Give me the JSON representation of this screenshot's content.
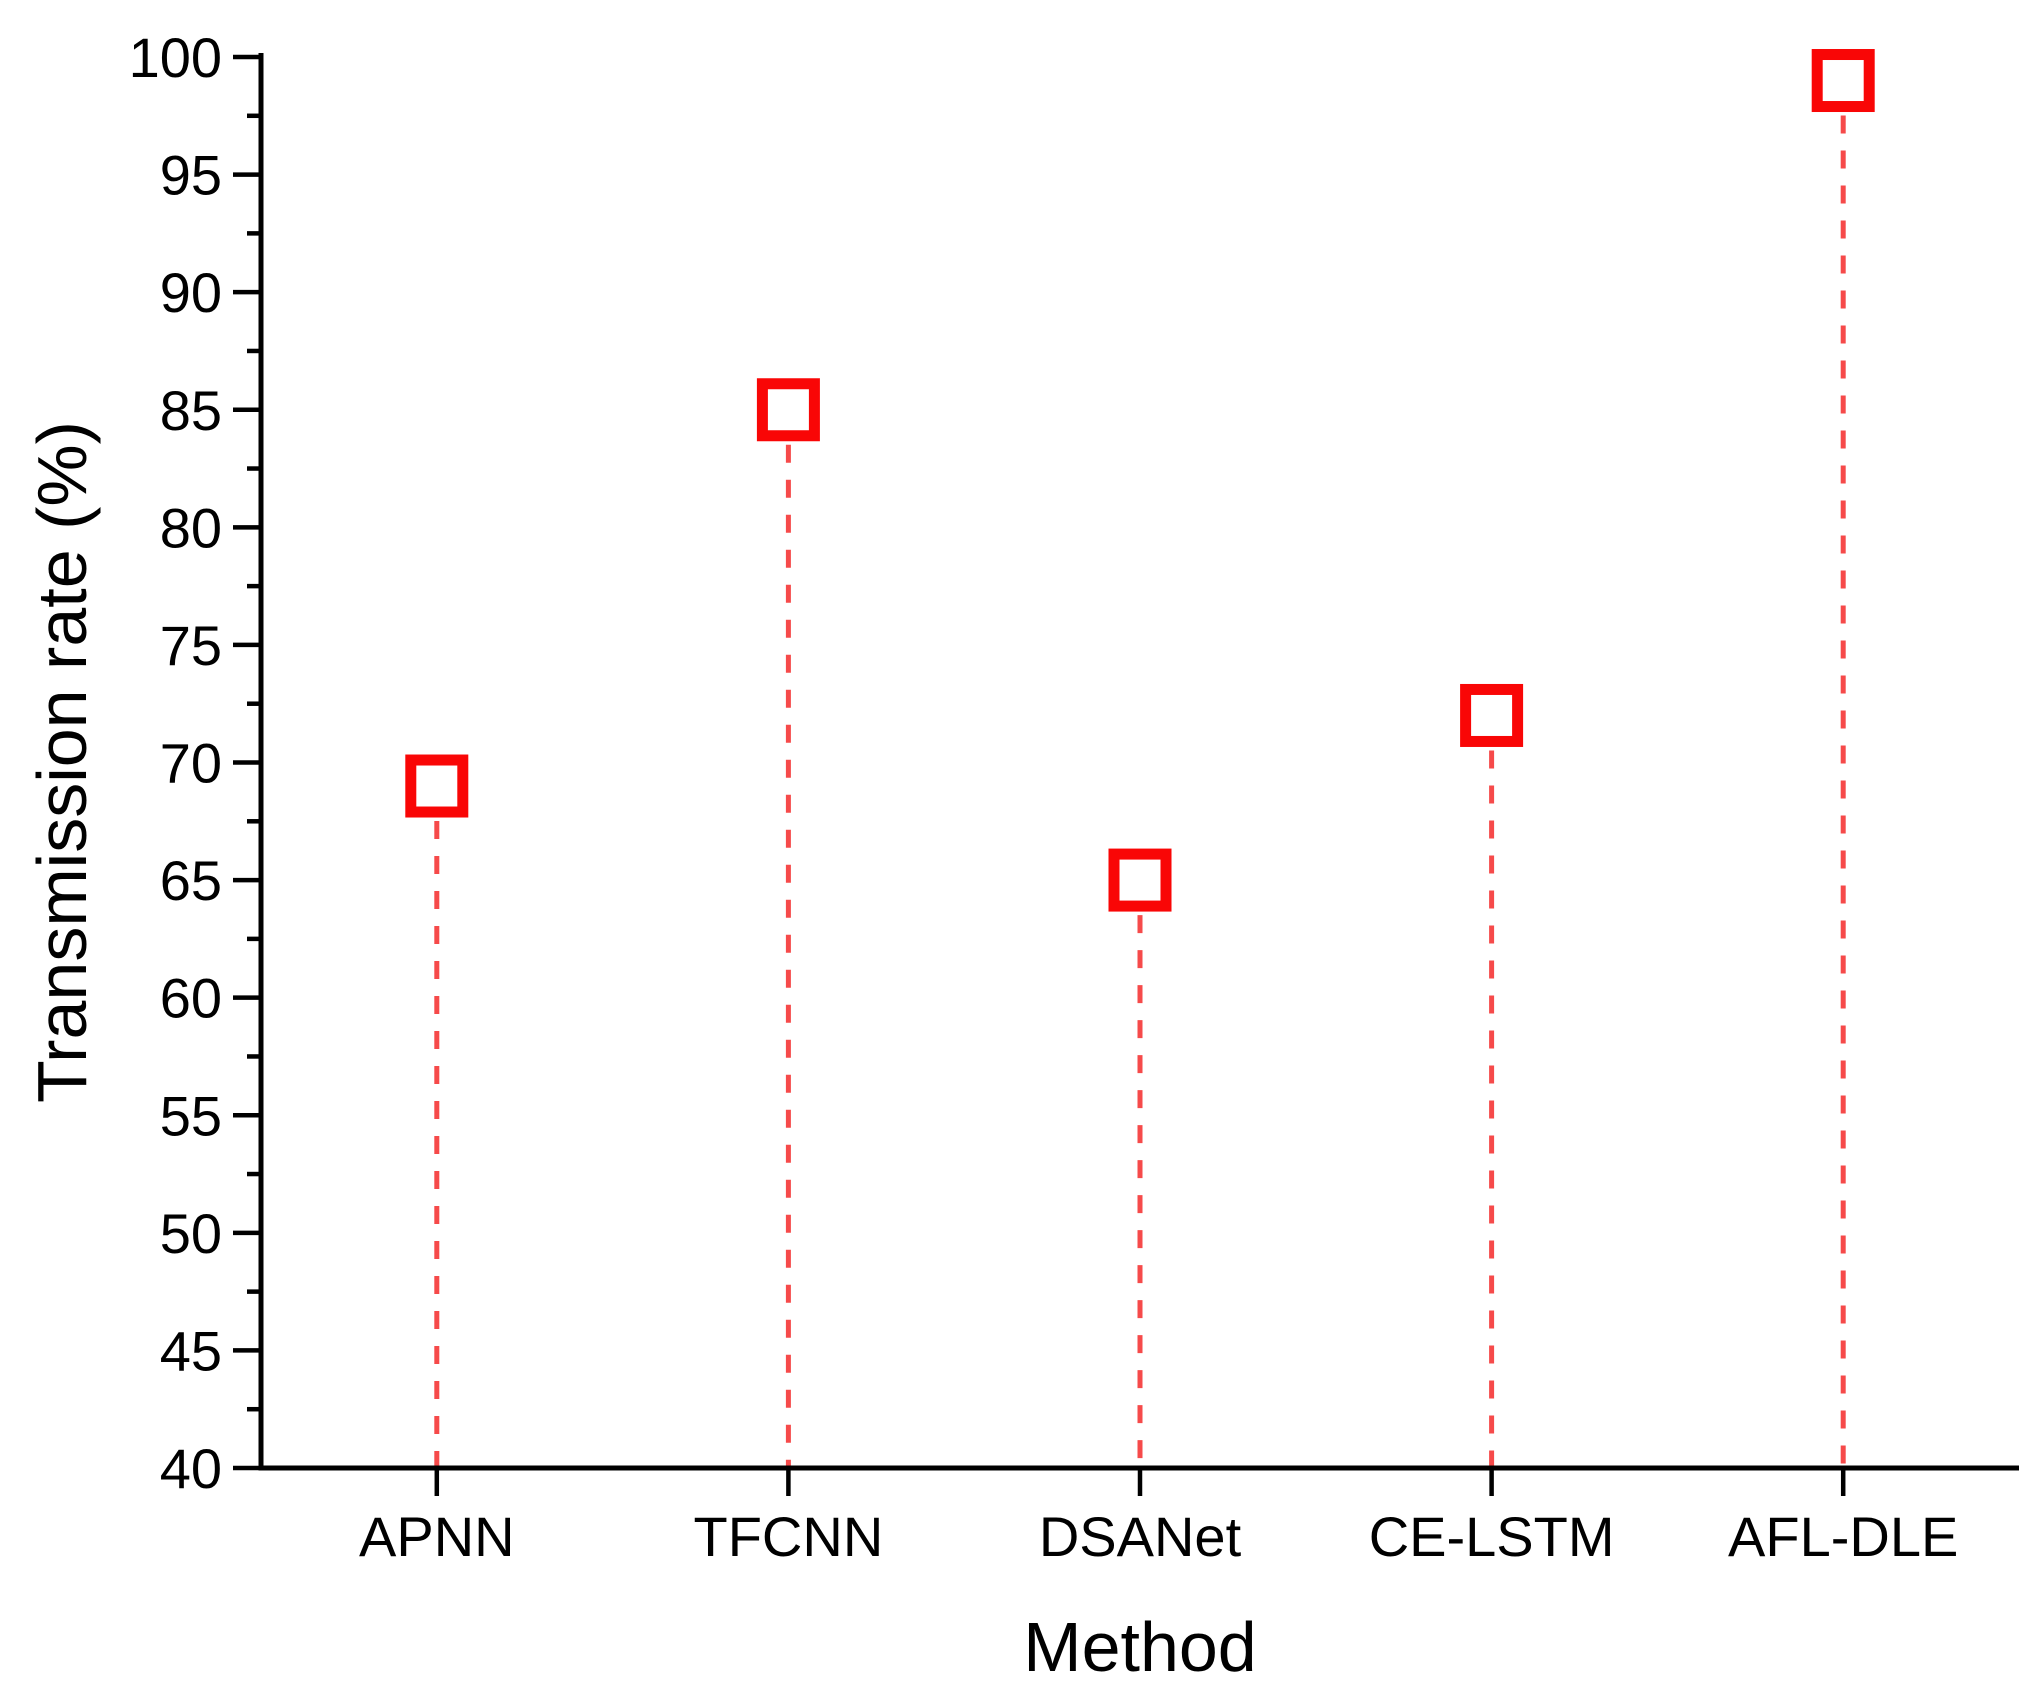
{
  "figure": {
    "background_color": "#ffffff",
    "x_axis_title": "Method",
    "y_axis_title": "Transmission rate (%)"
  },
  "chart_data": {
    "type": "scatter",
    "subtype": "lollipop-drop-lines",
    "title": "",
    "xlabel": "Method",
    "ylabel": "Transmission rate (%)",
    "categories": [
      "APNN",
      "TFCNN",
      "DSANet",
      "CE-LSTM",
      "AFL-DLE"
    ],
    "series": [
      {
        "name": "Transmission rate",
        "values": [
          69,
          85,
          65,
          72,
          99
        ]
      }
    ],
    "ylim": [
      40,
      100
    ],
    "y_major_ticks": [
      40,
      45,
      50,
      55,
      60,
      65,
      70,
      75,
      80,
      85,
      90,
      95,
      100
    ],
    "y_minor_ticks": [
      42.5,
      47.5,
      52.5,
      57.5,
      62.5,
      67.5,
      72.5,
      77.5,
      82.5,
      87.5,
      92.5,
      97.5
    ],
    "grid": false,
    "legend": false,
    "axis_color": "#000000",
    "text_color": "#000000",
    "marker": {
      "shape": "open-square",
      "stroke_color": "#f90606",
      "fill_color": "#ffffff",
      "size": 52,
      "stroke_width": 11
    },
    "drop_line": {
      "style": "dashed",
      "color": "#f64a4a",
      "width": 5,
      "dash_on": 18,
      "dash_off": 17
    }
  }
}
